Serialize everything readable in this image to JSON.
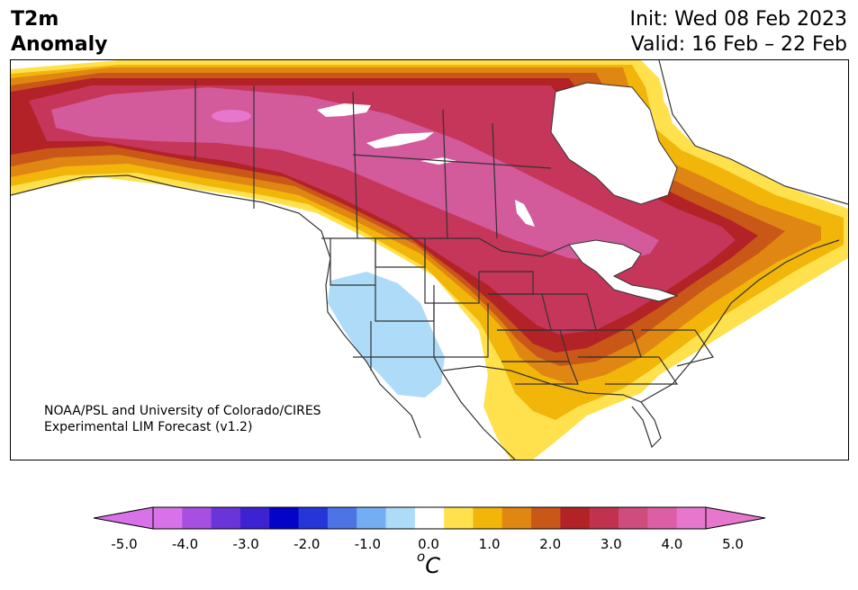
{
  "title": {
    "line1": "T2m",
    "line2": "Anomaly"
  },
  "dates": {
    "init": "Init: Wed 08 Feb 2023",
    "valid": "Valid: 16 Feb – 22 Feb"
  },
  "credit": {
    "line1": "NOAA/PSL and University of Colorado/CIRES",
    "line2": "Experimental LIM Forecast (v1.2)"
  },
  "colorbar": {
    "ticks": [
      "-5.0",
      "-4.0",
      "-3.0",
      "-2.0",
      "-1.0",
      "0.0",
      "1.0",
      "2.0",
      "3.0",
      "4.0",
      "5.0"
    ],
    "units_base": "C",
    "units_sup": "o",
    "colors": [
      "#d872e8",
      "#a64fe0",
      "#6a35d8",
      "#3d22d2",
      "#0404c8",
      "#2535d8",
      "#4d73e4",
      "#74aef2",
      "#aedcf8",
      "#ffffff",
      "#ffe14d",
      "#f2b50a",
      "#e08612",
      "#c85718",
      "#b22226",
      "#c0324e",
      "#cf4d7e",
      "#dc5fa6",
      "#e677cc"
    ],
    "extend_low_color": "#d872e8",
    "extend_high_color": "#e677cc"
  },
  "map": {
    "region": "North America",
    "variable": "2m temperature anomaly",
    "colors": {
      "very_warm": "#d35a9b",
      "warm_magenta": "#c5365a",
      "red": "#b22226",
      "orange_red": "#c85718",
      "orange": "#e08612",
      "gold": "#f2b50a",
      "yellow": "#ffe14d",
      "neutral": "#ffffff",
      "cool": "#aedcf8",
      "borders": "#333333"
    }
  }
}
